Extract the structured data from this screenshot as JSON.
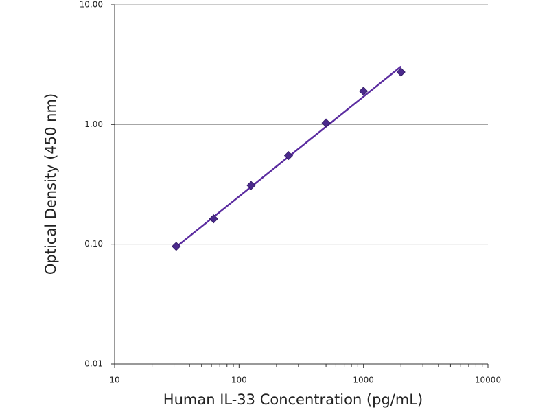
{
  "chart_data": {
    "type": "scatter",
    "x_label": "Human IL-33 Concentration (pg/mL)",
    "y_label": "Optical Density (450 nm)",
    "x": [
      31.25,
      62.5,
      125,
      250,
      500,
      1000,
      2000
    ],
    "series": [
      {
        "color": "#4b2a8c",
        "values": [
          0.096,
          0.163,
          0.31,
          0.55,
          1.03,
          1.9,
          2.74
        ]
      }
    ],
    "fit_line": {
      "color": "#5b2ca0",
      "x": [
        31.25,
        2000
      ],
      "values": [
        0.095,
        3.05
      ]
    },
    "xlim": [
      10,
      10000
    ],
    "ylim": [
      0.01,
      10
    ],
    "x_log": true,
    "y_log": true,
    "xticks": [
      10,
      100,
      1000,
      10000
    ],
    "x_minor_ticks": [
      20,
      30,
      40,
      50,
      60,
      70,
      80,
      90,
      200,
      300,
      400,
      500,
      600,
      700,
      800,
      900,
      2000,
      3000,
      4000,
      5000,
      6000,
      7000,
      8000,
      9000
    ],
    "yticks": [
      {
        "value": 0.01,
        "label": "0.01"
      },
      {
        "value": 0.1,
        "label": "0.10"
      },
      {
        "value": 1,
        "label": "1.00"
      },
      {
        "value": 10,
        "label": "10.00"
      }
    ],
    "grid": true
  }
}
